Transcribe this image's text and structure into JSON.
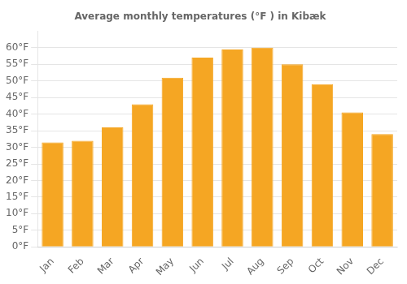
{
  "chart_data": {
    "type": "bar",
    "title": "Average monthly temperatures (°F ) in Kibæk",
    "categories": [
      "Jan",
      "Feb",
      "Mar",
      "Apr",
      "May",
      "Jun",
      "Jul",
      "Aug",
      "Sep",
      "Oct",
      "Nov",
      "Dec"
    ],
    "values": [
      31.5,
      32.0,
      36.0,
      43.0,
      51.0,
      57.0,
      59.5,
      60.0,
      55.0,
      49.0,
      40.5,
      34.0
    ],
    "color": "#F5A623",
    "ylim": [
      0,
      65
    ],
    "yticks": [
      {
        "value": 0,
        "label": "0°F"
      },
      {
        "value": 5,
        "label": "5°F"
      },
      {
        "value": 10,
        "label": "10°F"
      },
      {
        "value": 15,
        "label": "15°F"
      },
      {
        "value": 20,
        "label": "20°F"
      },
      {
        "value": 25,
        "label": "25°F"
      },
      {
        "value": 30,
        "label": "30°F"
      },
      {
        "value": 35,
        "label": "35°F"
      },
      {
        "value": 40,
        "label": "40°F"
      },
      {
        "value": 45,
        "label": "45°F"
      },
      {
        "value": 50,
        "label": "50°F"
      },
      {
        "value": 55,
        "label": "55°F"
      },
      {
        "value": 60,
        "label": "60°F"
      }
    ],
    "grid": true
  }
}
